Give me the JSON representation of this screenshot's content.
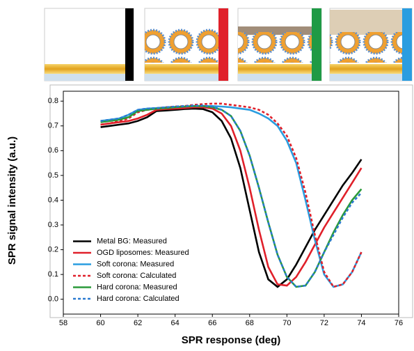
{
  "chart_data": {
    "type": "line",
    "xlabel": "SPR response (deg)",
    "ylabel": "SPR signal intensity (a.u.)",
    "xlim": [
      58,
      76
    ],
    "ylim": [
      -0.06,
      0.84
    ],
    "xticks": [
      58,
      60,
      62,
      64,
      66,
      68,
      70,
      72,
      74,
      76
    ],
    "yticks": [
      {
        "value": 0,
        "label": "0.0"
      },
      0.1,
      0.2,
      0.3,
      0.4,
      0.5,
      0.6,
      0.7,
      0.8
    ],
    "legend": "lower left",
    "x": [
      60,
      60.5,
      61,
      61.5,
      62,
      62.5,
      63,
      63.5,
      64,
      64.5,
      65,
      65.5,
      66,
      66.5,
      67,
      67.5,
      68,
      68.5,
      69,
      69.5,
      70,
      70.5,
      71,
      71.5,
      72,
      72.5,
      73,
      73.5,
      74
    ],
    "series": [
      {
        "name": "Metal BG: Measured",
        "color": "#000000",
        "dash": false,
        "values": [
          0.695,
          0.7,
          0.705,
          0.71,
          0.72,
          0.735,
          0.76,
          0.762,
          0.765,
          0.768,
          0.77,
          0.768,
          0.755,
          0.72,
          0.65,
          0.53,
          0.36,
          0.19,
          0.08,
          0.05,
          0.08,
          0.14,
          0.21,
          0.28,
          0.34,
          0.4,
          0.46,
          0.51,
          0.565
        ]
      },
      {
        "name": "OGD liposomes: Measured",
        "color": "#e0202a",
        "dash": false,
        "values": [
          0.705,
          0.71,
          0.715,
          0.72,
          0.73,
          0.745,
          0.765,
          0.768,
          0.77,
          0.772,
          0.775,
          0.775,
          0.77,
          0.75,
          0.7,
          0.6,
          0.45,
          0.28,
          0.13,
          0.06,
          0.055,
          0.09,
          0.15,
          0.22,
          0.29,
          0.35,
          0.41,
          0.47,
          0.53
        ]
      },
      {
        "name": "Soft corona: Measured",
        "color": "#2a9de0",
        "dash": false,
        "values": [
          0.72,
          0.725,
          0.73,
          0.745,
          0.765,
          0.77,
          0.772,
          0.775,
          0.777,
          0.778,
          0.78,
          0.78,
          0.78,
          0.778,
          0.775,
          0.77,
          0.765,
          0.75,
          0.73,
          0.7,
          0.64,
          0.55,
          0.4,
          0.24,
          0.1,
          0.05,
          0.06,
          0.11,
          0.19
        ]
      },
      {
        "name": "Soft corona: Calculated",
        "color": "#e0202a",
        "dash": true,
        "values": [
          0.705,
          0.71,
          0.72,
          0.73,
          0.755,
          0.765,
          0.77,
          0.775,
          0.778,
          0.78,
          0.785,
          0.788,
          0.79,
          0.79,
          0.785,
          0.78,
          0.775,
          0.765,
          0.745,
          0.71,
          0.66,
          0.57,
          0.43,
          0.26,
          0.11,
          0.05,
          0.06,
          0.11,
          0.19
        ]
      },
      {
        "name": "Hard corona: Measured",
        "color": "#2a9a3a",
        "dash": false,
        "values": [
          0.715,
          0.72,
          0.725,
          0.735,
          0.76,
          0.765,
          0.77,
          0.772,
          0.775,
          0.778,
          0.78,
          0.78,
          0.775,
          0.765,
          0.74,
          0.68,
          0.58,
          0.45,
          0.31,
          0.18,
          0.09,
          0.05,
          0.055,
          0.11,
          0.19,
          0.27,
          0.34,
          0.4,
          0.445
        ]
      },
      {
        "name": "Hard corona: Calculated",
        "color": "#2a7ad0",
        "dash": true,
        "values": [
          0.72,
          0.725,
          0.73,
          0.745,
          0.765,
          0.77,
          0.772,
          0.775,
          0.778,
          0.78,
          0.782,
          0.782,
          0.778,
          0.765,
          0.74,
          0.68,
          0.58,
          0.45,
          0.31,
          0.18,
          0.09,
          0.05,
          0.055,
          0.11,
          0.19,
          0.26,
          0.33,
          0.39,
          0.43
        ]
      }
    ]
  }
}
